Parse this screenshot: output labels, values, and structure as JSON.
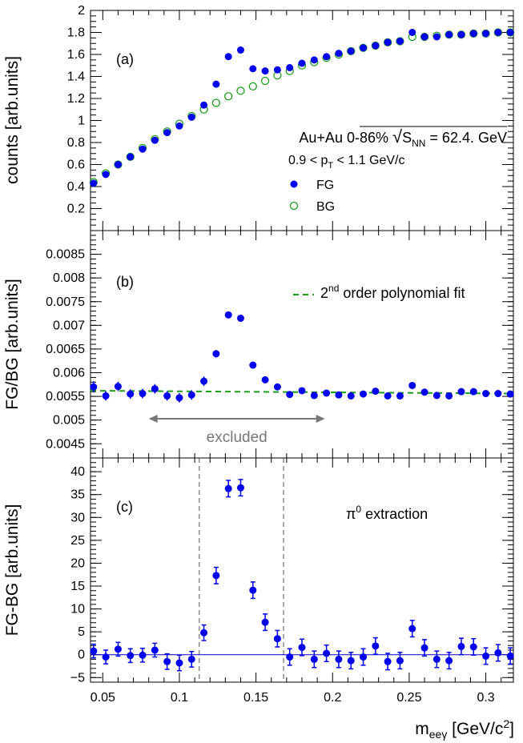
{
  "figure": {
    "x_axis_label": "m",
    "x_axis_label_sub": "eeγ",
    "x_axis_label_unit": " [GeV/c",
    "x_axis_label_unit_sup": "2",
    "x_axis_label_close": "]",
    "x_ticks": [
      "0.05",
      "0.1",
      "0.15",
      "0.2",
      "0.25",
      "0.3"
    ]
  },
  "chart_data": [
    {
      "type": "scatter",
      "panel": "(a)",
      "ylabel": "counts [arb.units]",
      "xlim": [
        0.042,
        0.318
      ],
      "ylim": [
        0,
        2
      ],
      "yticks": [
        "0.2",
        "0.4",
        "0.6",
        "0.8",
        "1",
        "1.2",
        "1.4",
        "1.6",
        "1.8",
        "2"
      ],
      "legend": {
        "line1_a": "Au+Au 0-86% ",
        "line1_sqrt": "S",
        "line1_sub": "NN",
        "line1_b": " = 62.4. GeV",
        "line2_a": "0.9 < p",
        "line2_sub": "T",
        "line2_b": " < 1.1 GeV/c",
        "placement": "right"
      },
      "series": [
        {
          "name": "FG",
          "marker": "filled-circle",
          "color": "#0000ee",
          "x": [
            0.044,
            0.052,
            0.06,
            0.068,
            0.076,
            0.084,
            0.092,
            0.1,
            0.108,
            0.116,
            0.124,
            0.132,
            0.14,
            0.148,
            0.156,
            0.164,
            0.172,
            0.18,
            0.188,
            0.196,
            0.204,
            0.212,
            0.22,
            0.228,
            0.236,
            0.244,
            0.252,
            0.26,
            0.268,
            0.276,
            0.284,
            0.292,
            0.3,
            0.308,
            0.316
          ],
          "y": [
            0.43,
            0.51,
            0.6,
            0.67,
            0.74,
            0.82,
            0.89,
            0.95,
            1.03,
            1.14,
            1.33,
            1.58,
            1.64,
            1.47,
            1.45,
            1.46,
            1.48,
            1.52,
            1.55,
            1.58,
            1.61,
            1.63,
            1.66,
            1.68,
            1.71,
            1.72,
            1.8,
            1.76,
            1.76,
            1.78,
            1.78,
            1.79,
            1.79,
            1.8,
            1.8
          ]
        },
        {
          "name": "BG",
          "marker": "open-circle",
          "color": "#1a9e1a",
          "x": [
            0.044,
            0.052,
            0.06,
            0.068,
            0.076,
            0.084,
            0.092,
            0.1,
            0.108,
            0.116,
            0.124,
            0.132,
            0.14,
            0.148,
            0.156,
            0.164,
            0.172,
            0.18,
            0.188,
            0.196,
            0.204,
            0.212,
            0.22,
            0.228,
            0.236,
            0.244,
            0.252,
            0.26,
            0.268,
            0.276,
            0.284,
            0.292,
            0.3,
            0.308,
            0.316
          ],
          "y": [
            0.44,
            0.52,
            0.6,
            0.67,
            0.75,
            0.83,
            0.9,
            0.97,
            1.04,
            1.1,
            1.16,
            1.22,
            1.27,
            1.31,
            1.36,
            1.41,
            1.45,
            1.5,
            1.53,
            1.57,
            1.6,
            1.63,
            1.66,
            1.68,
            1.71,
            1.72,
            1.76,
            1.76,
            1.77,
            1.78,
            1.78,
            1.79,
            1.79,
            1.8,
            1.8
          ]
        }
      ]
    },
    {
      "type": "scatter",
      "panel": "(b)",
      "ylabel": "FG/BG [arb.units]",
      "xlim": [
        0.042,
        0.318
      ],
      "ylim": [
        0.0042,
        0.009
      ],
      "yticks": [
        "0.0045",
        "0.005",
        "0.0055",
        "0.006",
        "0.0065",
        "0.007",
        "0.0075",
        "0.008",
        "0.0085"
      ],
      "fit_label_a": "2",
      "fit_label_sup": "nd",
      "fit_label_b": " order polynomial fit",
      "fit_color": "#1a9e1a",
      "fit": {
        "x": [
          0.042,
          0.318
        ],
        "y": [
          0.00562,
          0.00556
        ]
      },
      "excluded_label": "excluded",
      "excluded_range": [
        0.08,
        0.195
      ],
      "series": [
        {
          "name": "FG/BG",
          "marker": "filled-circle",
          "color": "#0000ee",
          "x": [
            0.044,
            0.052,
            0.06,
            0.068,
            0.076,
            0.084,
            0.092,
            0.1,
            0.108,
            0.116,
            0.124,
            0.132,
            0.14,
            0.148,
            0.156,
            0.164,
            0.172,
            0.18,
            0.188,
            0.196,
            0.204,
            0.212,
            0.22,
            0.228,
            0.236,
            0.244,
            0.252,
            0.26,
            0.268,
            0.276,
            0.284,
            0.292,
            0.3,
            0.308,
            0.316
          ],
          "y": [
            0.0057,
            0.00551,
            0.00571,
            0.00555,
            0.00556,
            0.00566,
            0.00551,
            0.00547,
            0.00553,
            0.00582,
            0.0064,
            0.00722,
            0.00715,
            0.00616,
            0.00585,
            0.0057,
            0.00554,
            0.00562,
            0.00552,
            0.00557,
            0.00553,
            0.00551,
            0.00555,
            0.00561,
            0.00551,
            0.00551,
            0.00573,
            0.00559,
            0.00552,
            0.00551,
            0.0056,
            0.0056,
            0.00556,
            0.00556,
            0.00555
          ],
          "err": [
            0.00012,
            0.0001,
            0.0001,
            0.0001,
            0.0001,
            0.0001,
            0.0001,
            0.0001,
            0.0001,
            0.0001,
            8e-05,
            6e-05,
            6e-05,
            5e-05,
            5e-05,
            5e-05,
            4e-05,
            4e-05,
            4e-05,
            4e-05,
            4e-05,
            4e-05,
            4e-05,
            4e-05,
            4e-05,
            4e-05,
            4e-05,
            4e-05,
            4e-05,
            4e-05,
            4e-05,
            4e-05,
            4e-05,
            4e-05,
            4e-05
          ]
        }
      ]
    },
    {
      "type": "scatter",
      "panel": "(c)",
      "ylabel": "FG-BG [arb.units]",
      "xlim": [
        0.042,
        0.318
      ],
      "ylim": [
        -6,
        43
      ],
      "yticks": [
        "−5",
        "0",
        "5",
        "10",
        "15",
        "20",
        "25",
        "30",
        "35",
        "40"
      ],
      "ytick_values": [
        -5,
        0,
        5,
        10,
        15,
        20,
        25,
        30,
        35,
        40
      ],
      "annotation_a": "π",
      "annotation_sup": "0",
      "annotation_b": " extraction",
      "window": [
        0.113,
        0.168
      ],
      "series": [
        {
          "name": "FG-BG",
          "marker": "filled-circle",
          "color": "#0000ee",
          "x": [
            0.044,
            0.052,
            0.06,
            0.068,
            0.076,
            0.084,
            0.092,
            0.1,
            0.108,
            0.116,
            0.124,
            0.132,
            0.14,
            0.148,
            0.156,
            0.164,
            0.172,
            0.18,
            0.188,
            0.196,
            0.204,
            0.212,
            0.22,
            0.228,
            0.236,
            0.244,
            0.252,
            0.26,
            0.268,
            0.276,
            0.284,
            0.292,
            0.3,
            0.308,
            0.316
          ],
          "y": [
            0.8,
            -0.5,
            1.2,
            -0.2,
            -0.1,
            1.0,
            -1.5,
            -1.8,
            -1.0,
            4.8,
            17.3,
            36.3,
            36.5,
            14.1,
            7.1,
            3.5,
            -0.5,
            1.6,
            -1.0,
            0.3,
            -1.0,
            -1.3,
            -0.5,
            1.9,
            -1.5,
            -1.3,
            5.7,
            1.5,
            -1.0,
            -1.3,
            1.8,
            1.7,
            -0.3,
            0.4,
            -0.3
          ],
          "err": [
            1.5,
            1.5,
            1.5,
            1.5,
            1.5,
            1.5,
            1.7,
            1.7,
            1.7,
            1.7,
            1.8,
            1.8,
            1.8,
            1.8,
            1.8,
            1.8,
            1.8,
            1.8,
            1.8,
            1.8,
            1.8,
            1.8,
            1.8,
            1.8,
            1.8,
            1.8,
            1.8,
            1.8,
            1.8,
            1.8,
            1.8,
            1.8,
            1.8,
            1.8,
            1.8
          ]
        }
      ]
    }
  ]
}
